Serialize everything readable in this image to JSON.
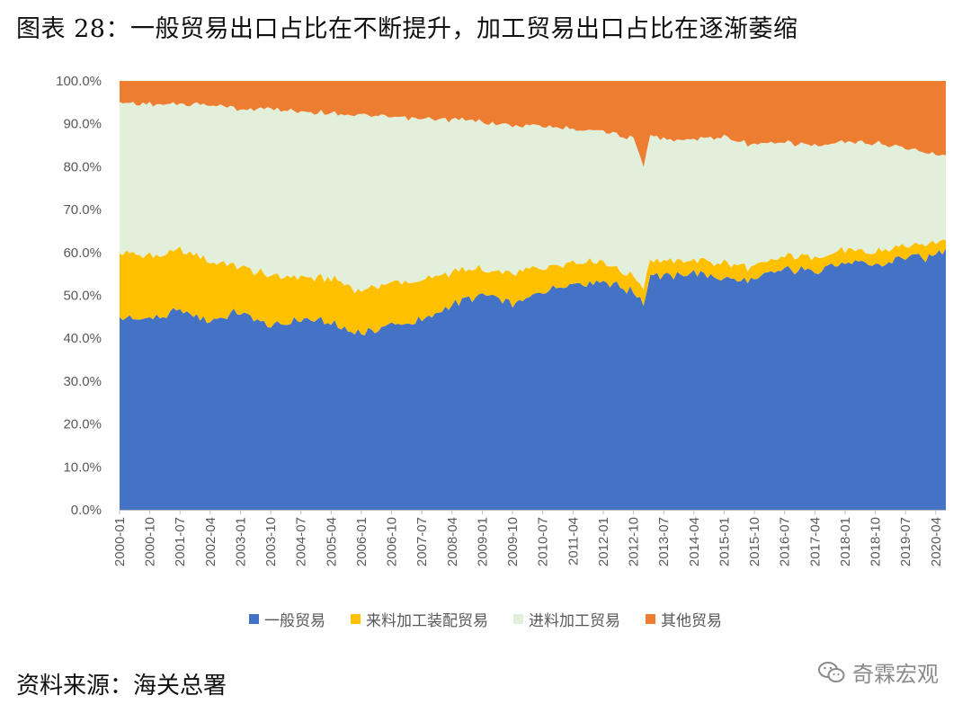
{
  "title": "图表 28：一般贸易出口占比在不断提升，加工贸易出口占比在逐渐萎缩",
  "source": "资料来源：海关总署",
  "watermark": {
    "text": "奇霖宏观",
    "icon": "wechat-icon"
  },
  "chart_data": {
    "type": "area",
    "stacked": true,
    "ylim": [
      0,
      100
    ],
    "y_ticks": [
      "0.0%",
      "10.0%",
      "20.0%",
      "30.0%",
      "40.0%",
      "50.0%",
      "60.0%",
      "70.0%",
      "80.0%",
      "90.0%",
      "100.0%"
    ],
    "x_ticks": [
      "2000-01",
      "2000-10",
      "2001-07",
      "2002-04",
      "2003-01",
      "2003-10",
      "2004-07",
      "2005-04",
      "2006-01",
      "2006-10",
      "2007-07",
      "2008-04",
      "2009-01",
      "2009-10",
      "2010-07",
      "2011-04",
      "2012-01",
      "2012-10",
      "2013-07",
      "2014-04",
      "2015-01",
      "2015-10",
      "2016-07",
      "2017-04",
      "2018-01",
      "2018-10",
      "2019-07",
      "2020-04"
    ],
    "x_start": "2000-01",
    "x_end": "2020-07",
    "legend_position": "bottom",
    "series": [
      {
        "name": "一般贸易",
        "color": "#4472C4",
        "keyframes": [
          [
            "2000-01",
            44.5
          ],
          [
            "2001-01",
            45
          ],
          [
            "2001-07",
            46.5
          ],
          [
            "2002-04",
            44
          ],
          [
            "2003-01",
            46
          ],
          [
            "2003-10",
            42.5
          ],
          [
            "2004-07",
            44.5
          ],
          [
            "2005-04",
            43.5
          ],
          [
            "2006-01",
            41
          ],
          [
            "2006-10",
            43
          ],
          [
            "2007-07",
            44
          ],
          [
            "2008-04",
            48
          ],
          [
            "2009-01",
            50
          ],
          [
            "2009-10",
            48
          ],
          [
            "2010-07",
            51
          ],
          [
            "2011-04",
            53
          ],
          [
            "2012-01",
            53.5
          ],
          [
            "2012-10",
            50.5
          ],
          [
            "2013-01",
            48
          ],
          [
            "2013-03",
            55
          ],
          [
            "2013-07",
            54.5
          ],
          [
            "2014-04",
            55
          ],
          [
            "2015-01",
            54
          ],
          [
            "2015-10",
            53.5
          ],
          [
            "2016-07",
            56
          ],
          [
            "2017-04",
            56
          ],
          [
            "2018-01",
            57.5
          ],
          [
            "2018-10",
            57
          ],
          [
            "2019-07",
            59
          ],
          [
            "2020-01",
            58.5
          ],
          [
            "2020-07",
            61
          ]
        ]
      },
      {
        "name": "来料加工装配贸易",
        "color": "#FFC000",
        "keyframes": [
          [
            "2000-01",
            15.5
          ],
          [
            "2001-01",
            14
          ],
          [
            "2001-07",
            14
          ],
          [
            "2002-04",
            14
          ],
          [
            "2003-01",
            11
          ],
          [
            "2003-10",
            12
          ],
          [
            "2004-07",
            10
          ],
          [
            "2005-04",
            10.5
          ],
          [
            "2006-01",
            10
          ],
          [
            "2006-10",
            10
          ],
          [
            "2007-07",
            9
          ],
          [
            "2008-04",
            7.5
          ],
          [
            "2009-01",
            6
          ],
          [
            "2009-10",
            7
          ],
          [
            "2010-07",
            5.5
          ],
          [
            "2011-04",
            5
          ],
          [
            "2012-01",
            4.5
          ],
          [
            "2012-10",
            4
          ],
          [
            "2013-01",
            4
          ],
          [
            "2013-03",
            3.5
          ],
          [
            "2013-07",
            3.5
          ],
          [
            "2014-04",
            3.5
          ],
          [
            "2015-01",
            3.5
          ],
          [
            "2015-10",
            3
          ],
          [
            "2016-07",
            3
          ],
          [
            "2017-04",
            3
          ],
          [
            "2018-01",
            2.8
          ],
          [
            "2018-10",
            3
          ],
          [
            "2019-07",
            2.8
          ],
          [
            "2020-01",
            3
          ],
          [
            "2020-07",
            2.5
          ]
        ]
      },
      {
        "name": "进料加工贸易",
        "color": "#E2EFDA",
        "keyframes": [
          [
            "2000-01",
            35
          ],
          [
            "2001-01",
            35.5
          ],
          [
            "2001-07",
            34
          ],
          [
            "2002-04",
            36.5
          ],
          [
            "2003-01",
            36.5
          ],
          [
            "2003-10",
            39
          ],
          [
            "2004-07",
            38.5
          ],
          [
            "2005-04",
            38.5
          ],
          [
            "2006-01",
            41
          ],
          [
            "2006-10",
            38.5
          ],
          [
            "2007-07",
            38
          ],
          [
            "2008-04",
            35.5
          ],
          [
            "2009-01",
            34.5
          ],
          [
            "2009-10",
            34.5
          ],
          [
            "2010-07",
            33
          ],
          [
            "2011-04",
            31
          ],
          [
            "2012-01",
            30.5
          ],
          [
            "2012-10",
            32
          ],
          [
            "2013-01",
            28
          ],
          [
            "2013-03",
            29
          ],
          [
            "2013-07",
            28.5
          ],
          [
            "2014-04",
            28
          ],
          [
            "2015-01",
            29.5
          ],
          [
            "2015-10",
            28.5
          ],
          [
            "2016-07",
            26.5
          ],
          [
            "2017-04",
            26
          ],
          [
            "2018-01",
            25.2
          ],
          [
            "2018-10",
            25.5
          ],
          [
            "2019-07",
            22.7
          ],
          [
            "2020-01",
            21.5
          ],
          [
            "2020-07",
            19.5
          ]
        ]
      },
      {
        "name": "其他贸易",
        "color": "#ED7D31",
        "keyframes": [
          [
            "2000-01",
            5
          ],
          [
            "2001-01",
            5.5
          ],
          [
            "2001-07",
            5.5
          ],
          [
            "2002-04",
            5.5
          ],
          [
            "2003-01",
            6.5
          ],
          [
            "2003-10",
            6.5
          ],
          [
            "2004-07",
            7
          ],
          [
            "2005-04",
            7.5
          ],
          [
            "2006-01",
            8
          ],
          [
            "2006-10",
            8.5
          ],
          [
            "2007-07",
            9
          ],
          [
            "2008-04",
            9
          ],
          [
            "2009-01",
            9.5
          ],
          [
            "2009-10",
            10.5
          ],
          [
            "2010-07",
            10.5
          ],
          [
            "2011-04",
            11
          ],
          [
            "2012-01",
            11.5
          ],
          [
            "2012-10",
            13.5
          ],
          [
            "2013-01",
            20
          ],
          [
            "2013-03",
            12.5
          ],
          [
            "2013-07",
            13.5
          ],
          [
            "2014-04",
            13.5
          ],
          [
            "2015-01",
            13
          ],
          [
            "2015-10",
            15
          ],
          [
            "2016-07",
            14.5
          ],
          [
            "2017-04",
            15
          ],
          [
            "2018-01",
            14.5
          ],
          [
            "2018-10",
            14.5
          ],
          [
            "2019-07",
            15.5
          ],
          [
            "2020-01",
            17
          ],
          [
            "2020-07",
            17
          ]
        ]
      }
    ]
  }
}
